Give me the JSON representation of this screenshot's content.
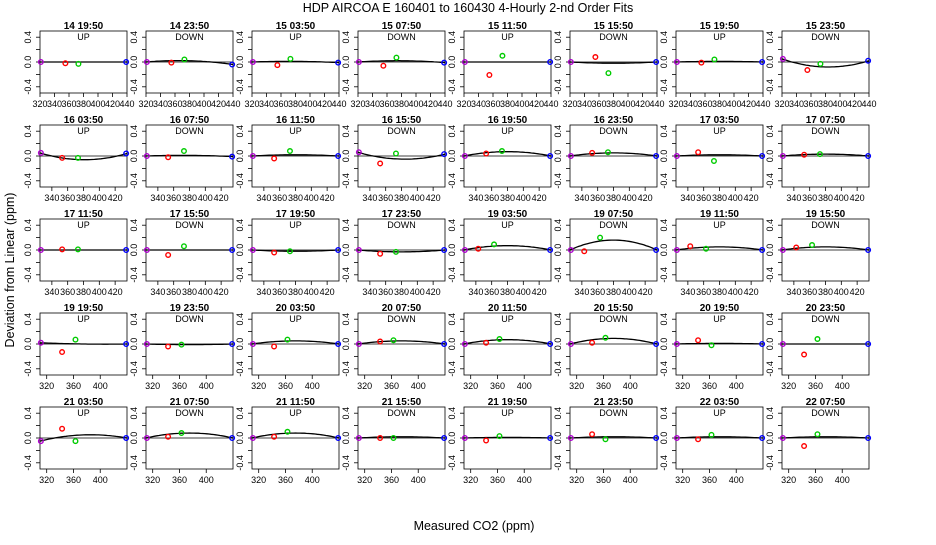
{
  "header": {
    "title": "HDP    AIRCOA E    160401 to 160430    4-Hourly 2-nd Order Fits",
    "xlabel": "Measured CO2 (ppm)",
    "ylabel": "Deviation from Linear (ppm)"
  },
  "chart_data": {
    "type": "scatter",
    "layout": "5 rows x 8 columns of small multiples",
    "ylim": [
      -0.5,
      0.5
    ],
    "yticks": [
      -0.4,
      -0.2,
      0.0,
      0.2,
      0.4
    ],
    "grid": false,
    "marker_colors": {
      "ref_low": "#b000d0",
      "ref_mid_red": "#ff0000",
      "ref_mid_green": "#00cc00",
      "ref_high": "#0000ff",
      "fit": "#000000"
    },
    "xlim_rows": [
      [
        320,
        440
      ],
      [
        325,
        435
      ],
      [
        325,
        435
      ],
      [
        310,
        440
      ],
      [
        310,
        440
      ]
    ],
    "xticks_rows": [
      [
        320,
        340,
        360,
        380,
        400,
        420,
        440
      ],
      [
        340,
        360,
        380,
        400,
        420
      ],
      [
        340,
        360,
        380,
        400,
        420
      ],
      [
        320,
        360,
        400
      ],
      [
        320,
        360,
        400
      ]
    ],
    "panels": [
      {
        "time": "14 19:50",
        "mode": "UP",
        "red_x": 355,
        "red_y": -0.02,
        "green_x": 373,
        "green_y": -0.03,
        "fit": [
          0,
          0,
          0
        ]
      },
      {
        "time": "14 23:50",
        "mode": "DOWN",
        "red_x": 355,
        "red_y": -0.01,
        "green_x": 373,
        "green_y": 0.04,
        "fit": [
          0,
          0.02,
          -0.04
        ]
      },
      {
        "time": "15 03:50",
        "mode": "UP",
        "red_x": 355,
        "red_y": -0.05,
        "green_x": 373,
        "green_y": 0.05,
        "fit": [
          0,
          0.01,
          -0.01
        ]
      },
      {
        "time": "15 07:50",
        "mode": "DOWN",
        "red_x": 355,
        "red_y": -0.06,
        "green_x": 373,
        "green_y": 0.07,
        "fit": [
          0,
          0.02,
          -0.01
        ]
      },
      {
        "time": "15 11:50",
        "mode": "UP",
        "red_x": 355,
        "red_y": -0.21,
        "green_x": 373,
        "green_y": 0.1,
        "fit": [
          0,
          0,
          0
        ]
      },
      {
        "time": "15 15:50",
        "mode": "DOWN",
        "red_x": 355,
        "red_y": 0.08,
        "green_x": 373,
        "green_y": -0.18,
        "fit": [
          0,
          -0.02,
          0
        ]
      },
      {
        "time": "15 19:50",
        "mode": "UP",
        "red_x": 355,
        "red_y": -0.01,
        "green_x": 373,
        "green_y": 0.04,
        "fit": [
          0,
          0.01,
          0
        ]
      },
      {
        "time": "15 23:50",
        "mode": "DOWN",
        "red_x": 355,
        "red_y": -0.13,
        "green_x": 373,
        "green_y": -0.03,
        "fit": [
          0.05,
          -0.08,
          0.02
        ]
      },
      {
        "time": "16 03:50",
        "mode": "UP",
        "red_x": 353,
        "red_y": -0.03,
        "green_x": 373,
        "green_y": -0.03,
        "fit": [
          0.05,
          -0.06,
          0.04
        ]
      },
      {
        "time": "16 07:50",
        "mode": "DOWN",
        "red_x": 353,
        "red_y": -0.02,
        "green_x": 373,
        "green_y": 0.08,
        "fit": [
          0,
          0.01,
          -0.01
        ]
      },
      {
        "time": "16 11:50",
        "mode": "UP",
        "red_x": 353,
        "red_y": -0.04,
        "green_x": 373,
        "green_y": 0.08,
        "fit": [
          0,
          0.02,
          0
        ]
      },
      {
        "time": "16 15:50",
        "mode": "DOWN",
        "red_x": 353,
        "red_y": -0.12,
        "green_x": 373,
        "green_y": 0.04,
        "fit": [
          0.06,
          -0.05,
          0.03
        ]
      },
      {
        "time": "16 19:50",
        "mode": "UP",
        "red_x": 353,
        "red_y": 0.04,
        "green_x": 373,
        "green_y": 0.08,
        "fit": [
          0,
          0.07,
          0
        ]
      },
      {
        "time": "16 23:50",
        "mode": "DOWN",
        "red_x": 353,
        "red_y": 0.05,
        "green_x": 373,
        "green_y": 0.06,
        "fit": [
          0,
          0.05,
          0
        ]
      },
      {
        "time": "17 03:50",
        "mode": "UP",
        "red_x": 353,
        "red_y": 0.06,
        "green_x": 373,
        "green_y": -0.08,
        "fit": [
          0,
          0.02,
          0
        ]
      },
      {
        "time": "17 07:50",
        "mode": "DOWN",
        "red_x": 353,
        "red_y": 0.02,
        "green_x": 373,
        "green_y": 0.03,
        "fit": [
          0,
          0.03,
          0
        ]
      },
      {
        "time": "17 11:50",
        "mode": "UP",
        "red_x": 353,
        "red_y": 0.01,
        "green_x": 373,
        "green_y": 0.01,
        "fit": [
          0,
          0,
          0
        ]
      },
      {
        "time": "17 15:50",
        "mode": "DOWN",
        "red_x": 353,
        "red_y": -0.08,
        "green_x": 373,
        "green_y": 0.06,
        "fit": [
          0,
          0,
          0
        ]
      },
      {
        "time": "17 19:50",
        "mode": "UP",
        "red_x": 353,
        "red_y": -0.04,
        "green_x": 373,
        "green_y": -0.02,
        "fit": [
          0,
          -0.02,
          0
        ]
      },
      {
        "time": "17 23:50",
        "mode": "DOWN",
        "red_x": 353,
        "red_y": -0.06,
        "green_x": 373,
        "green_y": -0.03,
        "fit": [
          0,
          -0.03,
          0
        ]
      },
      {
        "time": "19 03:50",
        "mode": "UP",
        "red_x": 343,
        "red_y": 0.02,
        "green_x": 363,
        "green_y": 0.09,
        "fit": [
          0,
          0.07,
          0
        ]
      },
      {
        "time": "19 07:50",
        "mode": "DOWN",
        "red_x": 343,
        "red_y": -0.02,
        "green_x": 363,
        "green_y": 0.2,
        "fit": [
          0,
          0.16,
          0
        ]
      },
      {
        "time": "19 11:50",
        "mode": "UP",
        "red_x": 343,
        "red_y": 0.06,
        "green_x": 363,
        "green_y": 0.02,
        "fit": [
          0,
          0.05,
          0
        ]
      },
      {
        "time": "19 15:50",
        "mode": "DOWN",
        "red_x": 343,
        "red_y": 0.04,
        "green_x": 363,
        "green_y": 0.08,
        "fit": [
          0,
          0.05,
          0
        ]
      },
      {
        "time": "19 19:50",
        "mode": "UP",
        "red_x": 343,
        "red_y": -0.13,
        "green_x": 363,
        "green_y": 0.07,
        "fit": [
          0.02,
          0,
          0
        ]
      },
      {
        "time": "19 23:50",
        "mode": "DOWN",
        "red_x": 343,
        "red_y": -0.04,
        "green_x": 363,
        "green_y": -0.01,
        "fit": [
          0,
          -0.01,
          0
        ]
      },
      {
        "time": "20 03:50",
        "mode": "UP",
        "red_x": 343,
        "red_y": -0.04,
        "green_x": 363,
        "green_y": 0.07,
        "fit": [
          0,
          0.05,
          0
        ]
      },
      {
        "time": "20 07:50",
        "mode": "DOWN",
        "red_x": 343,
        "red_y": 0.04,
        "green_x": 363,
        "green_y": 0.06,
        "fit": [
          0,
          0.05,
          0
        ]
      },
      {
        "time": "20 11:50",
        "mode": "UP",
        "red_x": 343,
        "red_y": 0.02,
        "green_x": 363,
        "green_y": 0.08,
        "fit": [
          0,
          0.07,
          0
        ]
      },
      {
        "time": "20 15:50",
        "mode": "DOWN",
        "red_x": 343,
        "red_y": 0.02,
        "green_x": 363,
        "green_y": 0.1,
        "fit": [
          0,
          0.09,
          0
        ]
      },
      {
        "time": "20 19:50",
        "mode": "UP",
        "red_x": 343,
        "red_y": 0.06,
        "green_x": 363,
        "green_y": -0.02,
        "fit": [
          0,
          0.01,
          0
        ]
      },
      {
        "time": "20 23:50",
        "mode": "DOWN",
        "red_x": 343,
        "red_y": -0.17,
        "green_x": 363,
        "green_y": 0.08,
        "fit": [
          0,
          0,
          0
        ]
      },
      {
        "time": "21 03:50",
        "mode": "UP",
        "red_x": 343,
        "red_y": 0.15,
        "green_x": 363,
        "green_y": -0.05,
        "fit": [
          -0.05,
          0.05,
          0
        ]
      },
      {
        "time": "21 07:50",
        "mode": "DOWN",
        "red_x": 343,
        "red_y": 0.02,
        "green_x": 363,
        "green_y": 0.08,
        "fit": [
          0,
          0.08,
          0
        ]
      },
      {
        "time": "21 11:50",
        "mode": "UP",
        "red_x": 343,
        "red_y": 0.02,
        "green_x": 363,
        "green_y": 0.1,
        "fit": [
          0,
          0.08,
          0
        ]
      },
      {
        "time": "21 15:50",
        "mode": "DOWN",
        "red_x": 343,
        "red_y": 0.0,
        "green_x": 363,
        "green_y": 0.0,
        "fit": [
          0,
          0.02,
          0
        ]
      },
      {
        "time": "21 19:50",
        "mode": "UP",
        "red_x": 343,
        "red_y": -0.04,
        "green_x": 363,
        "green_y": 0.03,
        "fit": [
          0,
          0.01,
          0
        ]
      },
      {
        "time": "21 23:50",
        "mode": "DOWN",
        "red_x": 343,
        "red_y": 0.06,
        "green_x": 363,
        "green_y": -0.02,
        "fit": [
          0,
          0.02,
          0
        ]
      },
      {
        "time": "22 03:50",
        "mode": "UP",
        "red_x": 343,
        "red_y": -0.02,
        "green_x": 363,
        "green_y": 0.05,
        "fit": [
          0,
          0.02,
          0
        ]
      },
      {
        "time": "22 07:50",
        "mode": "DOWN",
        "red_x": 343,
        "red_y": -0.13,
        "green_x": 363,
        "green_y": 0.06,
        "fit": [
          0,
          0.02,
          0
        ]
      }
    ]
  }
}
